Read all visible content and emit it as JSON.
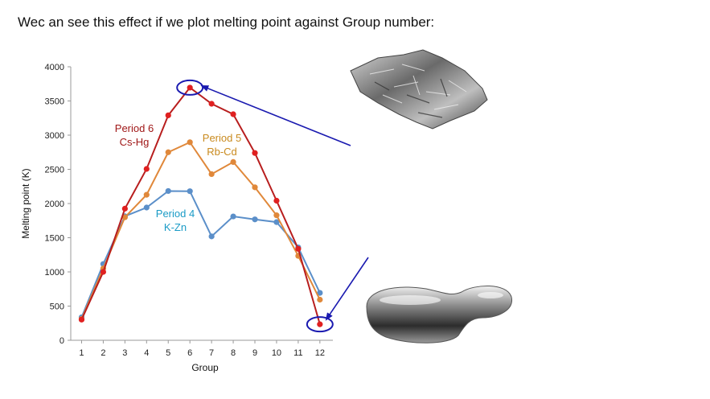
{
  "heading": "Wec an see this effect if we plot melting point against Group number:",
  "chart_data": {
    "type": "line",
    "xlabel": "Group",
    "ylabel": "Melting point (K)",
    "x": [
      1,
      2,
      3,
      4,
      5,
      6,
      7,
      8,
      9,
      10,
      11,
      12
    ],
    "xlim": [
      0.5,
      12.6
    ],
    "ylim": [
      0,
      4000
    ],
    "yticks": [
      0,
      500,
      1000,
      1500,
      2000,
      2500,
      3000,
      3500,
      4000
    ],
    "grid": false,
    "series": [
      {
        "name": "Period 4 K-Zn",
        "label_lines": [
          "Period 4",
          "K-Zn"
        ],
        "color": "#5b8fc9",
        "label_color": "#1a9bc6",
        "values": [
          336,
          1115,
          1814,
          1941,
          2183,
          2180,
          1519,
          1811,
          1768,
          1728,
          1358,
          693
        ]
      },
      {
        "name": "Period 5 Rb-Cd",
        "label_lines": [
          "Period 5",
          "Rb-Cd"
        ],
        "color": "#e0883a",
        "label_color": "#c98a1e",
        "values": [
          312,
          1050,
          1799,
          2128,
          2750,
          2896,
          2430,
          2607,
          2237,
          1828,
          1235,
          594
        ]
      },
      {
        "name": "Period 6 Cs-Hg",
        "label_lines": [
          "Period 6",
          "Cs-Hg"
        ],
        "color": "#b81e1e",
        "label_color": "#a01818",
        "point_color": "#e02020",
        "values": [
          302,
          1000,
          1925,
          2506,
          3290,
          3695,
          3459,
          3306,
          2739,
          2041,
          1337,
          234
        ]
      }
    ],
    "highlights": [
      {
        "x": 6,
        "y": 3695,
        "color": "#1a1ab0"
      },
      {
        "x": 12,
        "y": 234,
        "color": "#1a1ab0"
      }
    ]
  },
  "images": {
    "top_photo": "tungsten-crystal-photo",
    "bottom_photo": "liquid-mercury-photo"
  }
}
